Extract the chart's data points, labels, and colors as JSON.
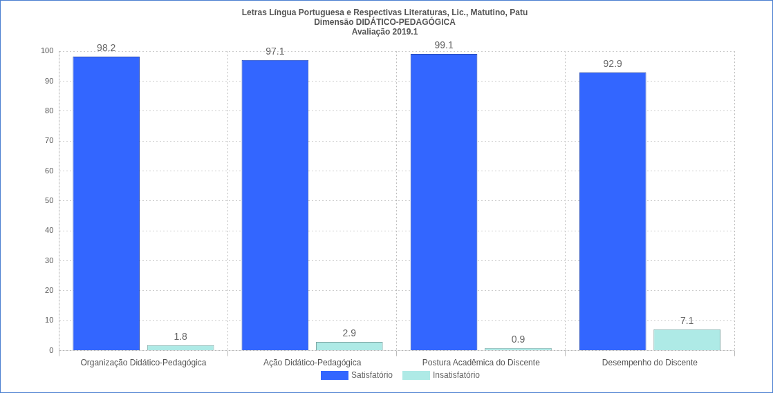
{
  "chart_data": {
    "type": "bar",
    "title": "Letras Língua Portuguesa e Respectivas Literaturas, Lic., Matutino, Patu\nDimensão DIDÁTICO-PEDAGÓGICA",
    "subtitle": "Avaliação 2019.1",
    "categories": [
      "Organização Didático-Pedagógica",
      "Ação Didático-Pedagógica",
      "Postura Acadêmica do Discente",
      "Desempenho do Discente"
    ],
    "series": [
      {
        "name": "Satisfatório",
        "color": "#3366ff",
        "values": [
          98.2,
          97.1,
          99.1,
          92.9
        ]
      },
      {
        "name": "Insatisfatório",
        "color": "#aeeae6",
        "values": [
          1.8,
          2.9,
          0.9,
          7.1
        ]
      }
    ],
    "ylim": [
      0,
      100
    ],
    "yticks": [
      0,
      10,
      20,
      30,
      40,
      50,
      60,
      70,
      80,
      90,
      100
    ],
    "grid": true,
    "legend": "bottom",
    "data_labels": true
  }
}
